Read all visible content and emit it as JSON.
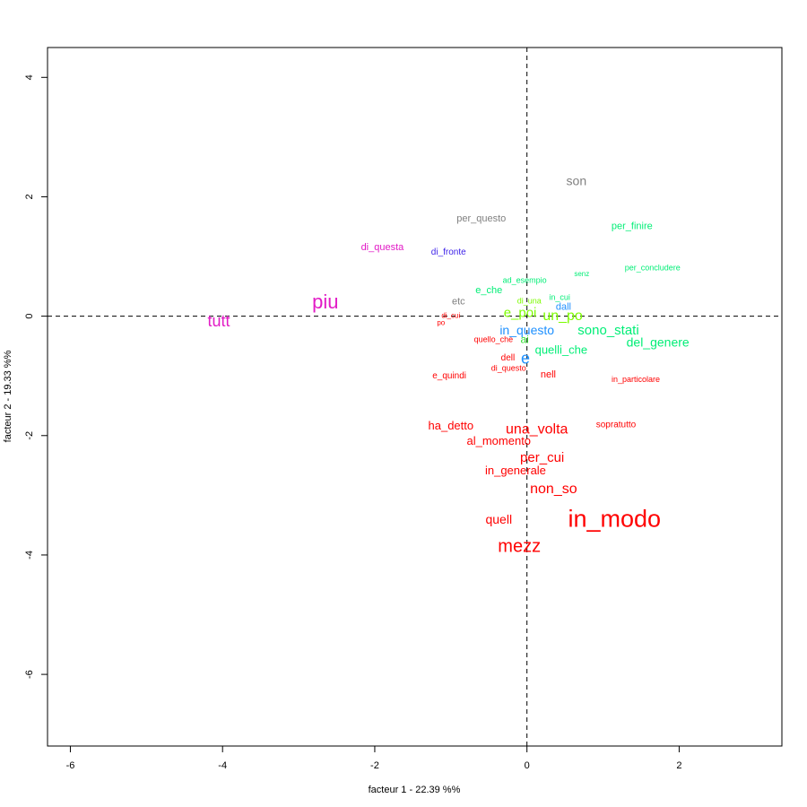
{
  "chart_data": {
    "type": "scatter",
    "xlabel": "facteur  1  - 22.39 %%",
    "ylabel": "facteur  2  - 19.33 %%",
    "xlim": [
      -6.3,
      3.35
    ],
    "ylim": [
      -7.2,
      4.5
    ],
    "x_ticks": [
      -6,
      -4,
      -2,
      0,
      2
    ],
    "y_ticks": [
      -6,
      -4,
      -2,
      0,
      2,
      4
    ],
    "grid": false,
    "reference_lines": {
      "x": 0,
      "y": 0,
      "style": "dashed"
    },
    "points": [
      {
        "label": "in_modo",
        "x": 1.15,
        "y": -3.42,
        "size": 27,
        "color": "#ff0000"
      },
      {
        "label": "mezz",
        "x": -0.1,
        "y": -3.87,
        "size": 20,
        "color": "#ff0000"
      },
      {
        "label": "quell",
        "x": -0.37,
        "y": -3.42,
        "size": 14,
        "color": "#ff0000"
      },
      {
        "label": "non_so",
        "x": 0.35,
        "y": -2.9,
        "size": 16,
        "color": "#ff0000"
      },
      {
        "label": "in_generale",
        "x": -0.15,
        "y": -2.6,
        "size": 13,
        "color": "#ff0000"
      },
      {
        "label": "per_cui",
        "x": 0.2,
        "y": -2.38,
        "size": 15,
        "color": "#ff0000"
      },
      {
        "label": "al_momento",
        "x": -0.37,
        "y": -2.1,
        "size": 13,
        "color": "#ff0000"
      },
      {
        "label": "una_volta",
        "x": 0.13,
        "y": -1.9,
        "size": 16,
        "color": "#ff0000"
      },
      {
        "label": "ha_detto",
        "x": -1.0,
        "y": -1.85,
        "size": 13,
        "color": "#ff0000"
      },
      {
        "label": "sopratutto",
        "x": 1.17,
        "y": -1.82,
        "size": 10,
        "color": "#ff0000"
      },
      {
        "label": "in_particolare",
        "x": 1.43,
        "y": -1.07,
        "size": 9,
        "color": "#ff0000"
      },
      {
        "label": "nell",
        "x": 0.28,
        "y": -0.98,
        "size": 11,
        "color": "#ff0000"
      },
      {
        "label": "e_quindi",
        "x": -1.02,
        "y": -1.0,
        "size": 10,
        "color": "#ff0000"
      },
      {
        "label": "di_questo",
        "x": -0.24,
        "y": -0.88,
        "size": 9,
        "color": "#ff0000"
      },
      {
        "label": "dell",
        "x": -0.25,
        "y": -0.7,
        "size": 10,
        "color": "#ff0000"
      },
      {
        "label": "quello_che",
        "x": -0.44,
        "y": -0.4,
        "size": 9,
        "color": "#ff0000"
      },
      {
        "label": "di_cui",
        "x": -1.0,
        "y": 0.0,
        "size": 8,
        "color": "#ff0000"
      },
      {
        "label": "po",
        "x": -1.13,
        "y": -0.12,
        "size": 8,
        "color": "#ff0000"
      },
      {
        "label": "e",
        "x": -0.02,
        "y": -0.72,
        "size": 18,
        "color": "#1e90ff"
      },
      {
        "label": "in_questo",
        "x": 0.0,
        "y": -0.25,
        "size": 14,
        "color": "#1e90ff"
      },
      {
        "label": "dall",
        "x": 0.48,
        "y": 0.15,
        "size": 11,
        "color": "#1e90ff"
      },
      {
        "label": "di_fronte",
        "x": -1.03,
        "y": 1.07,
        "size": 10,
        "color": "#3a1ee8"
      },
      {
        "label": "ai",
        "x": -0.03,
        "y": -0.4,
        "size": 12,
        "color": "#33dd33"
      },
      {
        "label": "e_poi",
        "x": -0.09,
        "y": 0.05,
        "size": 15,
        "color": "#7cfc00"
      },
      {
        "label": "un_po",
        "x": 0.47,
        "y": 0.0,
        "size": 16,
        "color": "#7cfc00"
      },
      {
        "label": "di_una",
        "x": 0.03,
        "y": 0.25,
        "size": 9,
        "color": "#7cfc00"
      },
      {
        "label": "in_cui",
        "x": 0.43,
        "y": 0.31,
        "size": 9,
        "color": "#00ee76"
      },
      {
        "label": "e_che",
        "x": -0.5,
        "y": 0.43,
        "size": 11,
        "color": "#00ee76"
      },
      {
        "label": "ad_esempio",
        "x": -0.03,
        "y": 0.59,
        "size": 9,
        "color": "#00ee76"
      },
      {
        "label": "senz",
        "x": 0.72,
        "y": 0.7,
        "size": 8,
        "color": "#00ee76"
      },
      {
        "label": "per_concludere",
        "x": 1.65,
        "y": 0.8,
        "size": 9,
        "color": "#00ee76"
      },
      {
        "label": "per_finire",
        "x": 1.38,
        "y": 1.5,
        "size": 11,
        "color": "#00ee76"
      },
      {
        "label": "quelli_che",
        "x": 0.45,
        "y": -0.58,
        "size": 13,
        "color": "#00ee76"
      },
      {
        "label": "sono_stati",
        "x": 1.07,
        "y": -0.25,
        "size": 15,
        "color": "#00ee76"
      },
      {
        "label": "del_genere",
        "x": 1.72,
        "y": -0.45,
        "size": 14,
        "color": "#00ee76"
      },
      {
        "label": "son",
        "x": 0.65,
        "y": 2.25,
        "size": 14,
        "color": "#808080"
      },
      {
        "label": "per_questo",
        "x": -0.6,
        "y": 1.63,
        "size": 11,
        "color": "#808080"
      },
      {
        "label": "etc",
        "x": -0.9,
        "y": 0.24,
        "size": 11,
        "color": "#808080"
      },
      {
        "label": "piu",
        "x": -2.65,
        "y": 0.22,
        "size": 22,
        "color": "#e21bc6"
      },
      {
        "label": "tutt",
        "x": -4.05,
        "y": -0.1,
        "size": 18,
        "color": "#e21bc6"
      },
      {
        "label": "di_questa",
        "x": -1.9,
        "y": 1.15,
        "size": 11,
        "color": "#e21bc6"
      }
    ]
  }
}
